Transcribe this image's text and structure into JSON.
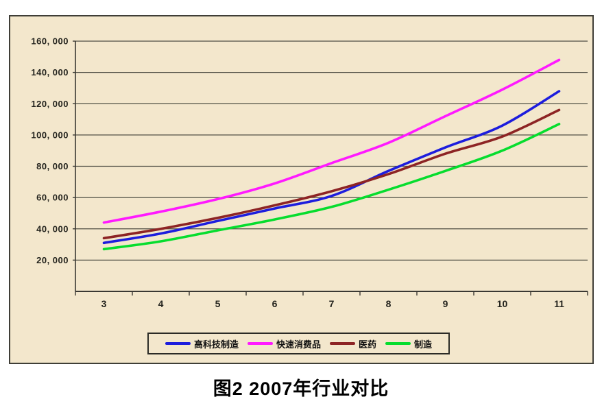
{
  "figure_title": "图2 2007年行业对比",
  "chart_style": {
    "plot_background": "#f3e7cc",
    "outer_border_color": "#3f3e37",
    "gridline_color": "#4d4c42",
    "axis_color": "#3a3933",
    "tick_label_color": "#23231d",
    "legend_border_color": "#2b2b26"
  },
  "chart_data": {
    "type": "line",
    "title": "图2 2007年行业对比",
    "categories": [
      "3",
      "4",
      "5",
      "6",
      "7",
      "8",
      "9",
      "10",
      "11"
    ],
    "xlabel": "",
    "ylabel": "",
    "ylim": [
      0,
      160000
    ],
    "y_ticks": [
      20000,
      40000,
      60000,
      80000,
      100000,
      120000,
      140000,
      160000
    ],
    "y_tick_labels": [
      "20, 000",
      "40, 000",
      "60, 000",
      "80, 000",
      "100, 000",
      "120, 000",
      "140, 000",
      "160, 000"
    ],
    "grid": true,
    "legend_position": "bottom-inside",
    "series": [
      {
        "name": "高科技制造",
        "color": "#1d1ddd",
        "values": [
          31000,
          37000,
          45000,
          53000,
          61000,
          77000,
          92000,
          106000,
          128000
        ]
      },
      {
        "name": "快速消费品",
        "color": "#ff1aff",
        "values": [
          44000,
          51000,
          59000,
          69000,
          82000,
          95000,
          112000,
          129000,
          148000
        ]
      },
      {
        "name": "医药",
        "color": "#8d2424",
        "values": [
          34000,
          40000,
          47000,
          55000,
          64000,
          75000,
          88000,
          99000,
          116000
        ]
      },
      {
        "name": "制造",
        "color": "#06dd2e",
        "values": [
          27000,
          32000,
          39000,
          46000,
          54000,
          65000,
          77000,
          90000,
          107000
        ]
      }
    ]
  }
}
